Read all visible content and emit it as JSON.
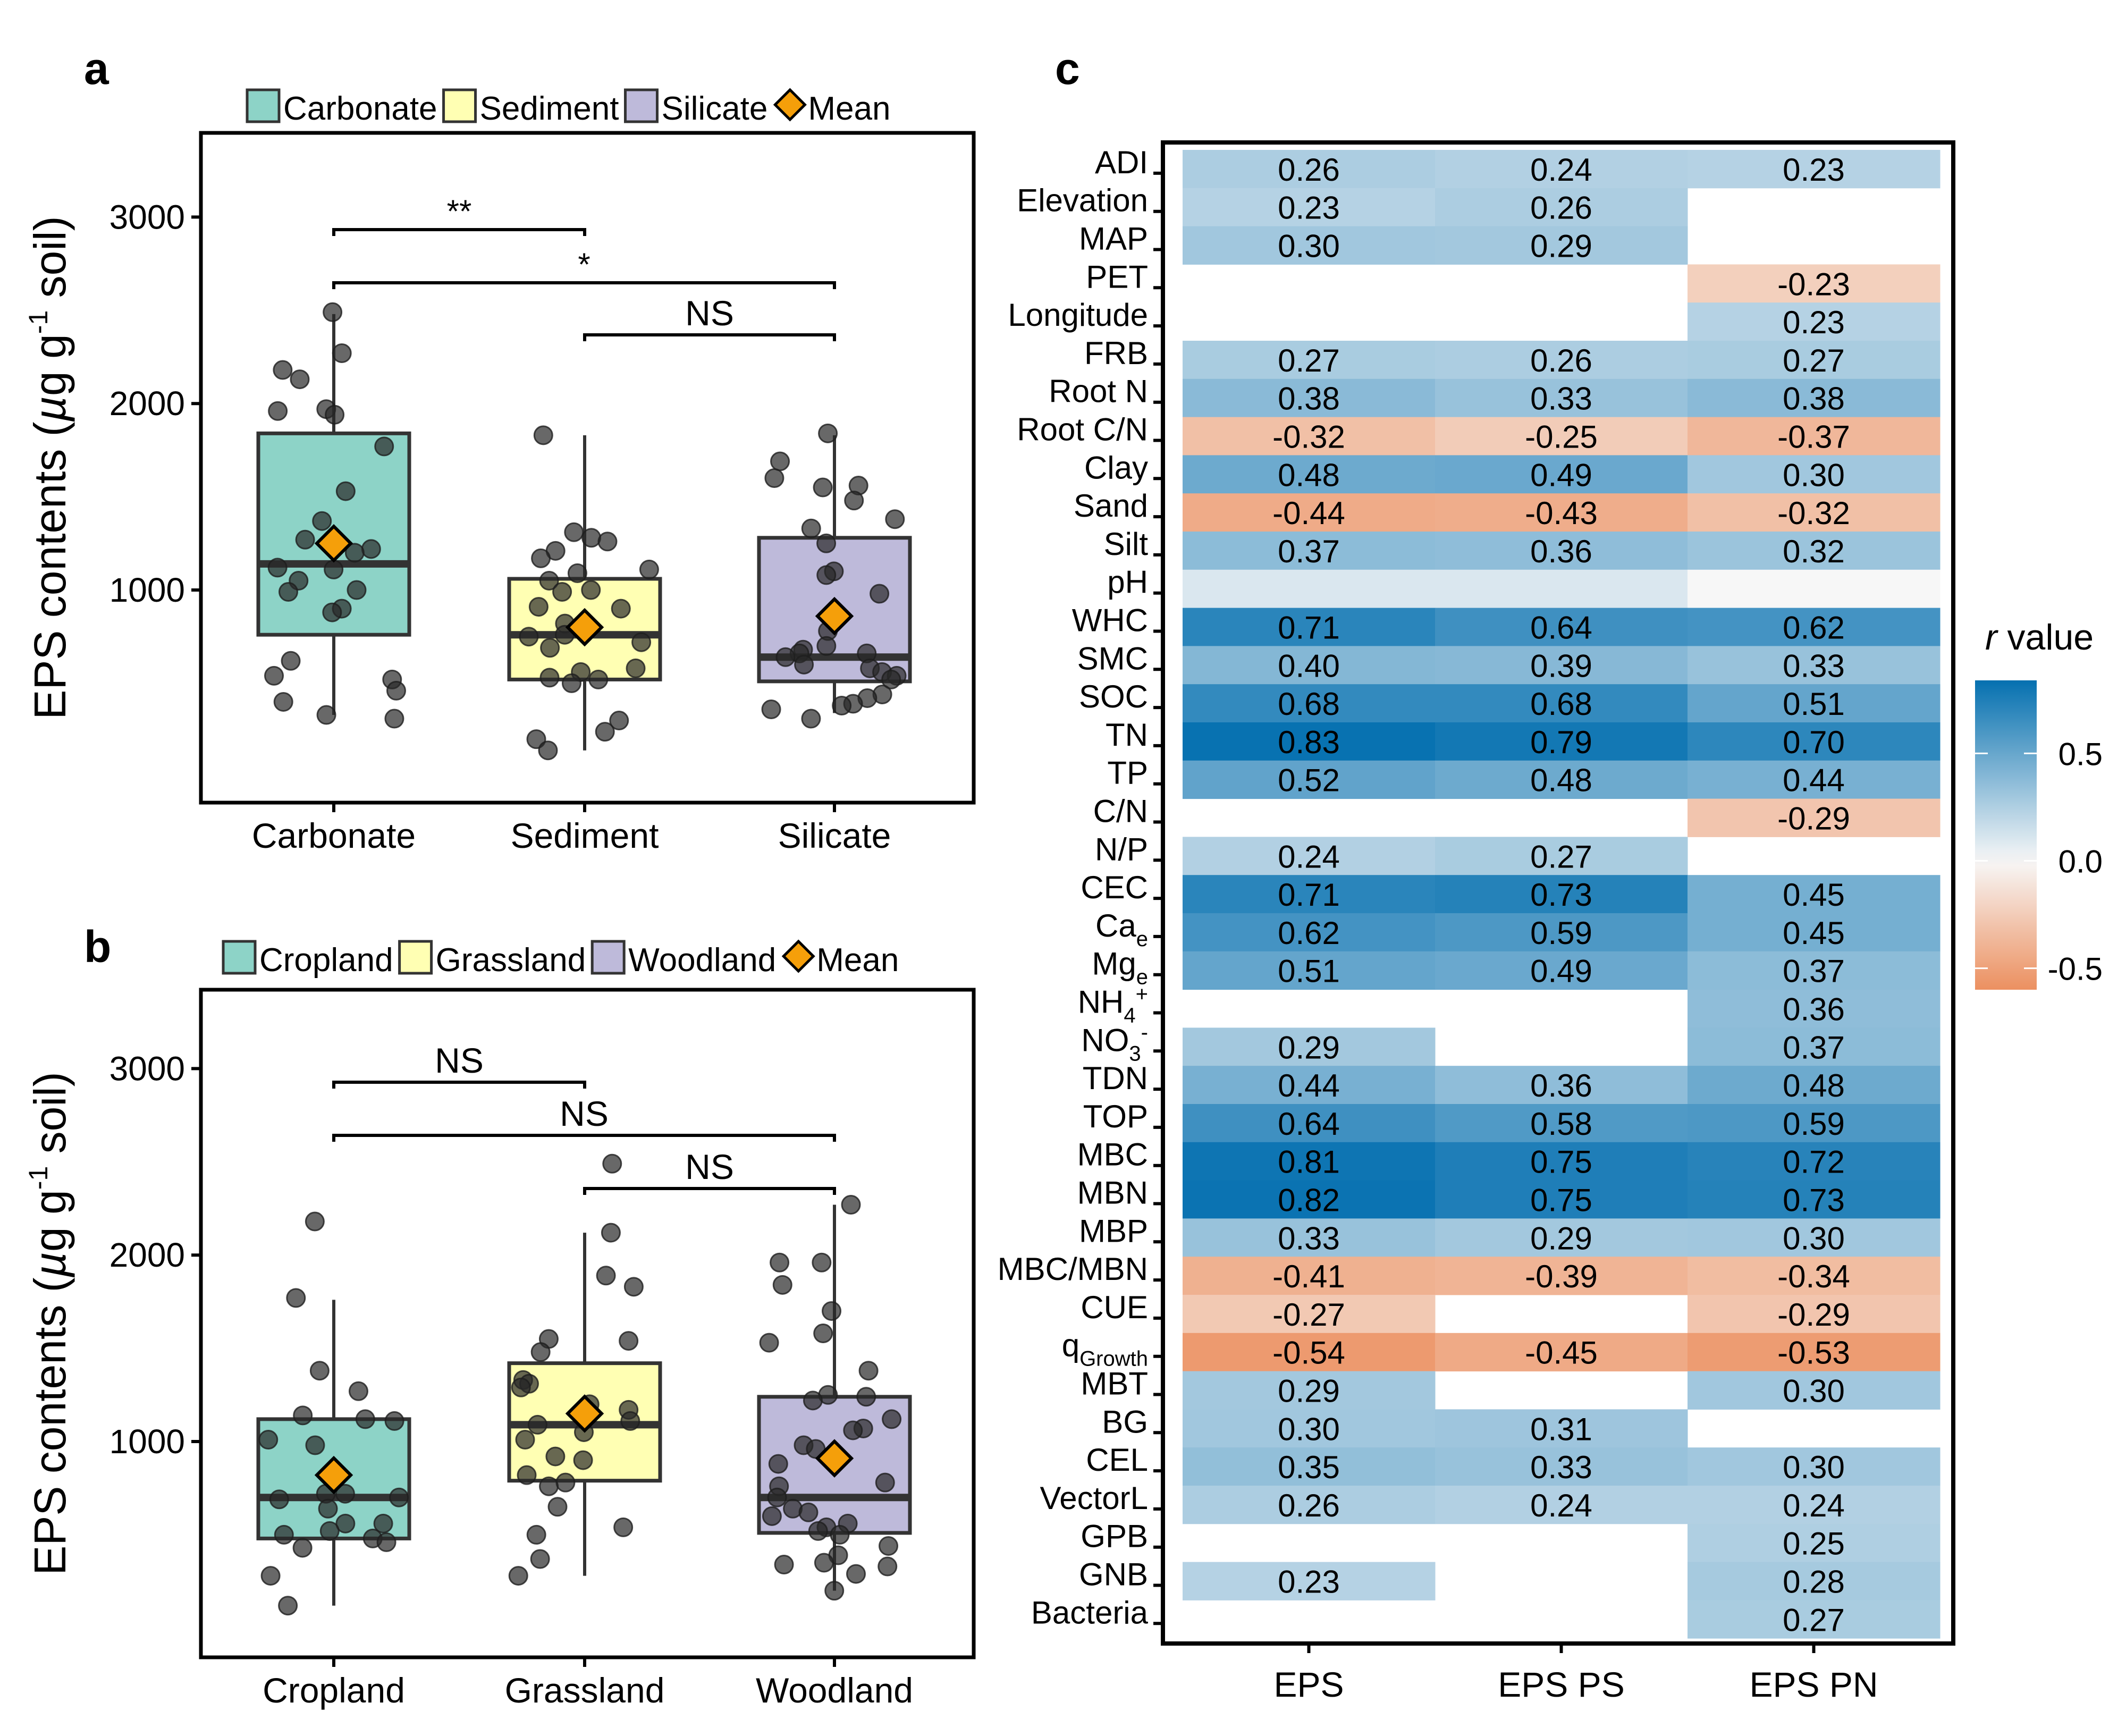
{
  "chart_data": [
    {
      "panel": "a",
      "type": "box",
      "ylabel": "EPS contents (µg g-1 soil)",
      "ylabel_parts": {
        "pre": "EPS contents (",
        "mu": "µ",
        "mid": "g g",
        "sup": "-1",
        "post": " soil)"
      },
      "yticks": [
        1000,
        2000,
        3000
      ],
      "ylim": [
        0,
        3400
      ],
      "categories": [
        "Carbonate",
        "Sediment",
        "Silicate"
      ],
      "legend": [
        {
          "label": "Carbonate",
          "color": "#8dd3c7"
        },
        {
          "label": "Sediment",
          "color": "#ffffb3"
        },
        {
          "label": "Silicate",
          "color": "#bebada"
        },
        {
          "label": "Mean",
          "color": "#f59f0a",
          "shape": "diamond"
        }
      ],
      "boxes": [
        {
          "category": "Carbonate",
          "q1": 760,
          "median": 1140,
          "q3": 1840,
          "whisker_low": 330,
          "whisker_high": 2480,
          "mean": 1250,
          "points": [
            2490,
            2270,
            2180,
            2130,
            1970,
            1940,
            1960,
            1770,
            1530,
            1370,
            1270,
            1220,
            1200,
            1120,
            1110,
            1050,
            1000,
            990,
            900,
            880,
            620,
            540,
            520,
            460,
            400,
            330,
            310
          ]
        },
        {
          "category": "Sediment",
          "q1": 520,
          "median": 760,
          "q3": 1060,
          "whisker_low": 140,
          "whisker_high": 1830,
          "mean": 800,
          "points": [
            1830,
            1310,
            1280,
            1260,
            1210,
            1170,
            1110,
            1090,
            1050,
            1000,
            990,
            910,
            900,
            820,
            760,
            750,
            720,
            690,
            580,
            560,
            530,
            520,
            500,
            300,
            240,
            200,
            140
          ]
        },
        {
          "category": "Silicate",
          "q1": 510,
          "median": 640,
          "q3": 1280,
          "whisker_low": 340,
          "whisker_high": 1830,
          "mean": 860,
          "points": [
            1840,
            1690,
            1600,
            1550,
            1560,
            1480,
            1380,
            1330,
            1250,
            1100,
            1080,
            980,
            780,
            700,
            680,
            660,
            660,
            640,
            600,
            580,
            560,
            540,
            520,
            440,
            420,
            390,
            380,
            360,
            310
          ]
        }
      ],
      "significance": [
        {
          "from": "Carbonate",
          "to": "Sediment",
          "label": "**"
        },
        {
          "from": "Carbonate",
          "to": "Silicate",
          "label": "*"
        },
        {
          "from": "Sediment",
          "to": "Silicate",
          "label": "NS"
        }
      ]
    },
    {
      "panel": "b",
      "type": "box",
      "ylabel": "EPS contents (µg g-1 soil)",
      "yticks": [
        1000,
        2000,
        3000
      ],
      "ylim": [
        0,
        3400
      ],
      "categories": [
        "Cropland",
        "Grassland",
        "Woodland"
      ],
      "legend": [
        {
          "label": "Cropland",
          "color": "#8dd3c7"
        },
        {
          "label": "Grassland",
          "color": "#ffffb3"
        },
        {
          "label": "Woodland",
          "color": "#bebada"
        },
        {
          "label": "Mean",
          "color": "#f59f0a",
          "shape": "diamond"
        }
      ],
      "boxes": [
        {
          "category": "Cropland",
          "q1": 480,
          "median": 700,
          "q3": 1120,
          "whisker_low": 120,
          "whisker_high": 1760,
          "mean": 820,
          "points": [
            2180,
            1770,
            1380,
            1270,
            1120,
            1140,
            1110,
            1010,
            980,
            720,
            720,
            690,
            700,
            640,
            560,
            560,
            520,
            500,
            480,
            460,
            430,
            280,
            120
          ]
        },
        {
          "category": "Grassland",
          "q1": 790,
          "median": 1090,
          "q3": 1420,
          "whisker_low": 280,
          "whisker_high": 2120,
          "mean": 1150,
          "points": [
            2490,
            2120,
            1890,
            1830,
            1550,
            1540,
            1480,
            1330,
            1310,
            1290,
            1200,
            1170,
            1110,
            1090,
            1050,
            1010,
            920,
            900,
            820,
            780,
            760,
            650,
            540,
            500,
            370,
            280
          ]
        },
        {
          "category": "Woodland",
          "q1": 510,
          "median": 700,
          "q3": 1240,
          "whisker_low": 200,
          "whisker_high": 2270,
          "mean": 910,
          "points": [
            2270,
            1960,
            1960,
            1840,
            1700,
            1580,
            1530,
            1380,
            1250,
            1240,
            1220,
            1120,
            1070,
            1060,
            980,
            960,
            880,
            780,
            760,
            700,
            640,
            620,
            600,
            560,
            540,
            520,
            500,
            440,
            390,
            350,
            340,
            330,
            290,
            200
          ]
        }
      ],
      "significance": [
        {
          "from": "Cropland",
          "to": "Grassland",
          "label": "NS"
        },
        {
          "from": "Cropland",
          "to": "Woodland",
          "label": "NS"
        },
        {
          "from": "Grassland",
          "to": "Woodland",
          "label": "NS"
        }
      ]
    },
    {
      "panel": "c",
      "type": "heatmap",
      "columns": [
        "EPS",
        "EPS PS",
        "EPS PN"
      ],
      "colorbar": {
        "title_italic": "r",
        "title_rest": " value",
        "ticks": [
          0.5,
          0.0,
          -0.5
        ],
        "tick_labels": [
          "0.5",
          "0.0",
          "-0.5"
        ],
        "range": [
          -0.6,
          0.84
        ],
        "low_color": "#ec9060",
        "mid_color": "#f7f7f7",
        "high_color": "#0570b0"
      },
      "rows": [
        {
          "label": "ADI",
          "values": [
            0.26,
            0.24,
            0.23
          ]
        },
        {
          "label": "Elevation",
          "values": [
            0.23,
            0.26,
            null
          ]
        },
        {
          "label": "MAP",
          "values": [
            0.3,
            0.29,
            null
          ]
        },
        {
          "label": "PET",
          "values": [
            null,
            null,
            -0.23
          ]
        },
        {
          "label": "Longitude",
          "values": [
            null,
            null,
            0.23
          ]
        },
        {
          "label": "FRB",
          "values": [
            0.27,
            0.26,
            0.27
          ]
        },
        {
          "label": "Root N",
          "values": [
            0.38,
            0.33,
            0.38
          ]
        },
        {
          "label": "Root C/N",
          "values": [
            -0.32,
            -0.25,
            -0.37
          ]
        },
        {
          "label": "Clay",
          "values": [
            0.48,
            0.49,
            0.3
          ]
        },
        {
          "label": "Sand",
          "values": [
            -0.44,
            -0.43,
            -0.32
          ]
        },
        {
          "label": "Silt",
          "values": [
            0.37,
            0.36,
            0.32
          ]
        },
        {
          "label": "pH",
          "values": [
            0.1,
            0.1,
            0.0
          ],
          "hide_text": true
        },
        {
          "label": "WHC",
          "values": [
            0.71,
            0.64,
            0.62
          ]
        },
        {
          "label": "SMC",
          "values": [
            0.4,
            0.39,
            0.33
          ]
        },
        {
          "label": "SOC",
          "values": [
            0.68,
            0.68,
            0.51
          ]
        },
        {
          "label": "TN",
          "values": [
            0.83,
            0.79,
            0.7
          ]
        },
        {
          "label": "TP",
          "values": [
            0.52,
            0.48,
            0.44
          ]
        },
        {
          "label": "C/N",
          "values": [
            null,
            null,
            -0.29
          ]
        },
        {
          "label": "N/P",
          "values": [
            0.24,
            0.27,
            null
          ]
        },
        {
          "label": "CEC",
          "values": [
            0.71,
            0.73,
            0.45
          ]
        },
        {
          "label": "Ca",
          "sub": "e",
          "values": [
            0.62,
            0.59,
            0.45
          ]
        },
        {
          "label": "Mg",
          "sub": "e",
          "values": [
            0.51,
            0.49,
            0.37
          ]
        },
        {
          "label": "NH",
          "sub": "4",
          "sup": "+",
          "values": [
            null,
            null,
            0.36
          ]
        },
        {
          "label": "NO",
          "sub": "3",
          "sup": "-",
          "values": [
            0.29,
            null,
            0.37
          ]
        },
        {
          "label": "TDN",
          "values": [
            0.44,
            0.36,
            0.48
          ]
        },
        {
          "label": "TOP",
          "values": [
            0.64,
            0.58,
            0.59
          ]
        },
        {
          "label": "MBC",
          "values": [
            0.81,
            0.75,
            0.72
          ]
        },
        {
          "label": "MBN",
          "values": [
            0.82,
            0.75,
            0.73
          ]
        },
        {
          "label": "MBP",
          "values": [
            0.33,
            0.29,
            0.3
          ]
        },
        {
          "label": "MBC/MBN",
          "values": [
            -0.41,
            -0.39,
            -0.34
          ]
        },
        {
          "label": "CUE",
          "values": [
            -0.27,
            null,
            -0.29
          ]
        },
        {
          "label": "q",
          "sub": "Growth",
          "values": [
            -0.54,
            -0.45,
            -0.53
          ]
        },
        {
          "label": "MBT",
          "values": [
            0.29,
            null,
            0.3
          ]
        },
        {
          "label": "BG",
          "values": [
            0.3,
            0.31,
            null
          ]
        },
        {
          "label": "CEL",
          "values": [
            0.35,
            0.33,
            0.3
          ]
        },
        {
          "label": "VectorL",
          "values": [
            0.26,
            0.24,
            0.24
          ]
        },
        {
          "label": "GPB",
          "values": [
            null,
            null,
            0.25
          ]
        },
        {
          "label": "GNB",
          "values": [
            0.23,
            null,
            0.28
          ]
        },
        {
          "label": "Bacteria",
          "values": [
            null,
            null,
            0.27
          ]
        }
      ]
    }
  ],
  "panel_labels": {
    "a": "a",
    "b": "b",
    "c": "c"
  }
}
